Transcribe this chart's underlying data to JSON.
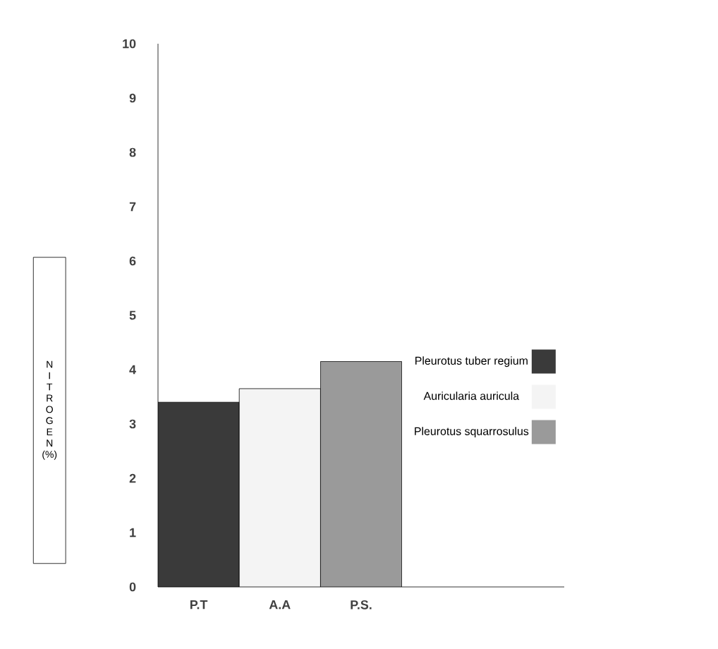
{
  "chart_data": {
    "type": "bar",
    "categories": [
      "P.T",
      "A.A",
      "P.S."
    ],
    "ylabel": "NITROGEN (%)",
    "series": [
      {
        "name": "Pleurotus tuber regium",
        "color": "#3a3a3a",
        "values": [
          3.4,
          null,
          null
        ]
      },
      {
        "name": "Auricularia auricula",
        "color": "#f4f4f4",
        "values": [
          null,
          3.65,
          null
        ]
      },
      {
        "name": "Pleurotus squarrosulus",
        "color": "#9a9a9a",
        "values": [
          null,
          null,
          4.15
        ]
      }
    ],
    "ylim": [
      0,
      10
    ],
    "yticks": [
      0,
      1,
      2,
      3,
      4,
      5,
      6,
      7,
      8,
      9,
      10
    ],
    "legend": "right",
    "grid": false
  }
}
